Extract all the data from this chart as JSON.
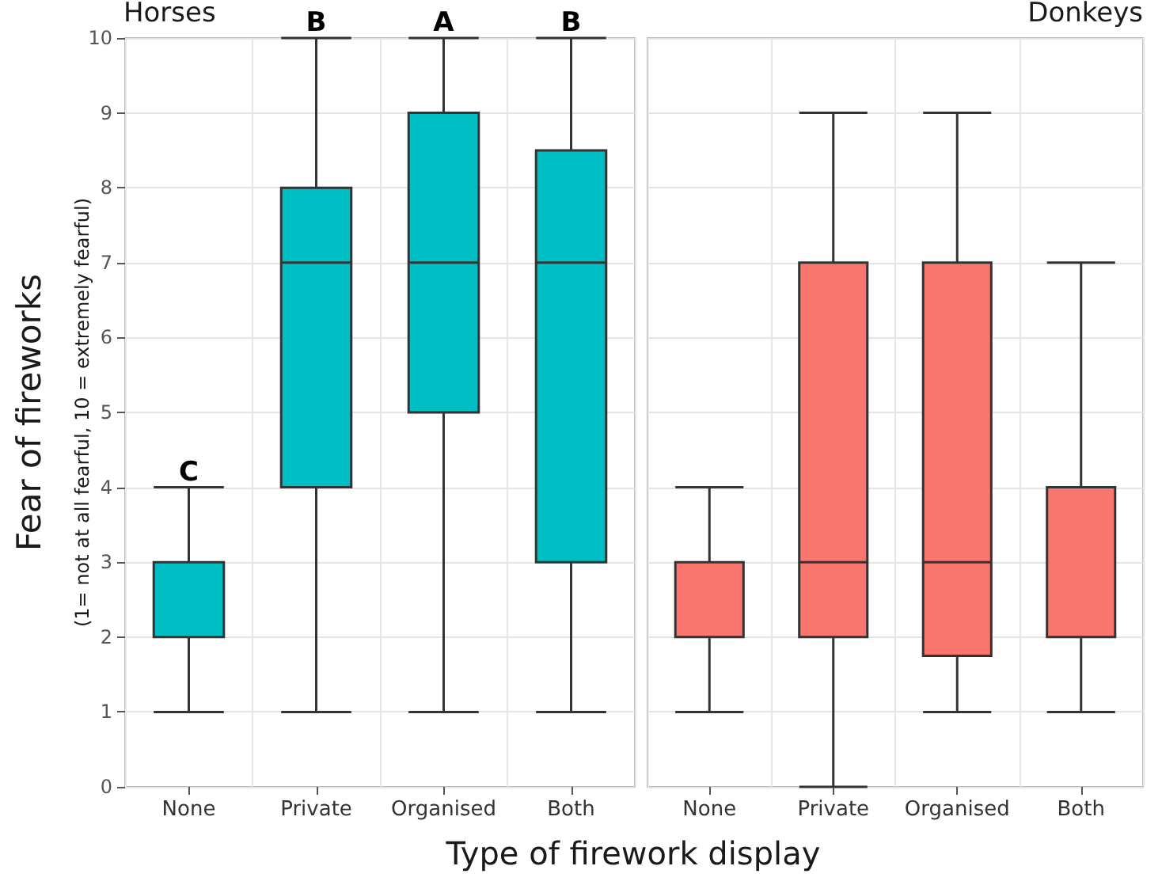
{
  "chart_data": [
    {
      "type": "box",
      "title": "Horses",
      "ylabel": "Fear of fireworks",
      "xlabel": "Type of firework display",
      "categories": [
        "None",
        "Private",
        "Organised",
        "Both"
      ],
      "color": "#00bfc4",
      "boxes": [
        {
          "low": 1,
          "q1": 2,
          "median": 2,
          "q3": 3,
          "high": 4
        },
        {
          "low": 1,
          "q1": 4,
          "median": 7,
          "q3": 8,
          "high": 10
        },
        {
          "low": 1,
          "q1": 5,
          "median": 7,
          "q3": 9,
          "high": 10
        },
        {
          "low": 1,
          "q1": 3,
          "median": 7,
          "q3": 8.5,
          "high": 10
        }
      ],
      "ylim": [
        0,
        10
      ],
      "yticks": [
        0,
        1,
        2,
        3,
        4,
        5,
        6,
        7,
        8,
        9,
        10
      ],
      "grid": true,
      "annotations": [
        "(1= not at all fearful, 10 = extremely fearful)",
        {
          "text": "C",
          "x": "None",
          "y": 4
        },
        {
          "text": "B",
          "x": "Private",
          "y": 10
        },
        {
          "text": "A",
          "x": "Organised",
          "y": 10
        },
        {
          "text": "B",
          "x": "Both",
          "y": 10
        }
      ]
    },
    {
      "type": "box",
      "title": "Donkeys",
      "categories": [
        "None",
        "Private",
        "Organised",
        "Both"
      ],
      "color": "#f8766d",
      "boxes": [
        {
          "low": 1,
          "q1": 2,
          "median": 2,
          "q3": 3,
          "high": 4
        },
        {
          "low": 0,
          "q1": 2,
          "median": 3,
          "q3": 7,
          "high": 9
        },
        {
          "low": 1,
          "q1": 1.75,
          "median": 3,
          "q3": 7,
          "high": 9
        },
        {
          "low": 1,
          "q1": 2,
          "median": 2,
          "q3": 4,
          "high": 7
        }
      ],
      "ylim": [
        0,
        10
      ],
      "yticks": [
        0,
        1,
        2,
        3,
        4,
        5,
        6,
        7,
        8,
        9,
        10
      ],
      "grid": true,
      "tick_labels": "x"
    }
  ]
}
